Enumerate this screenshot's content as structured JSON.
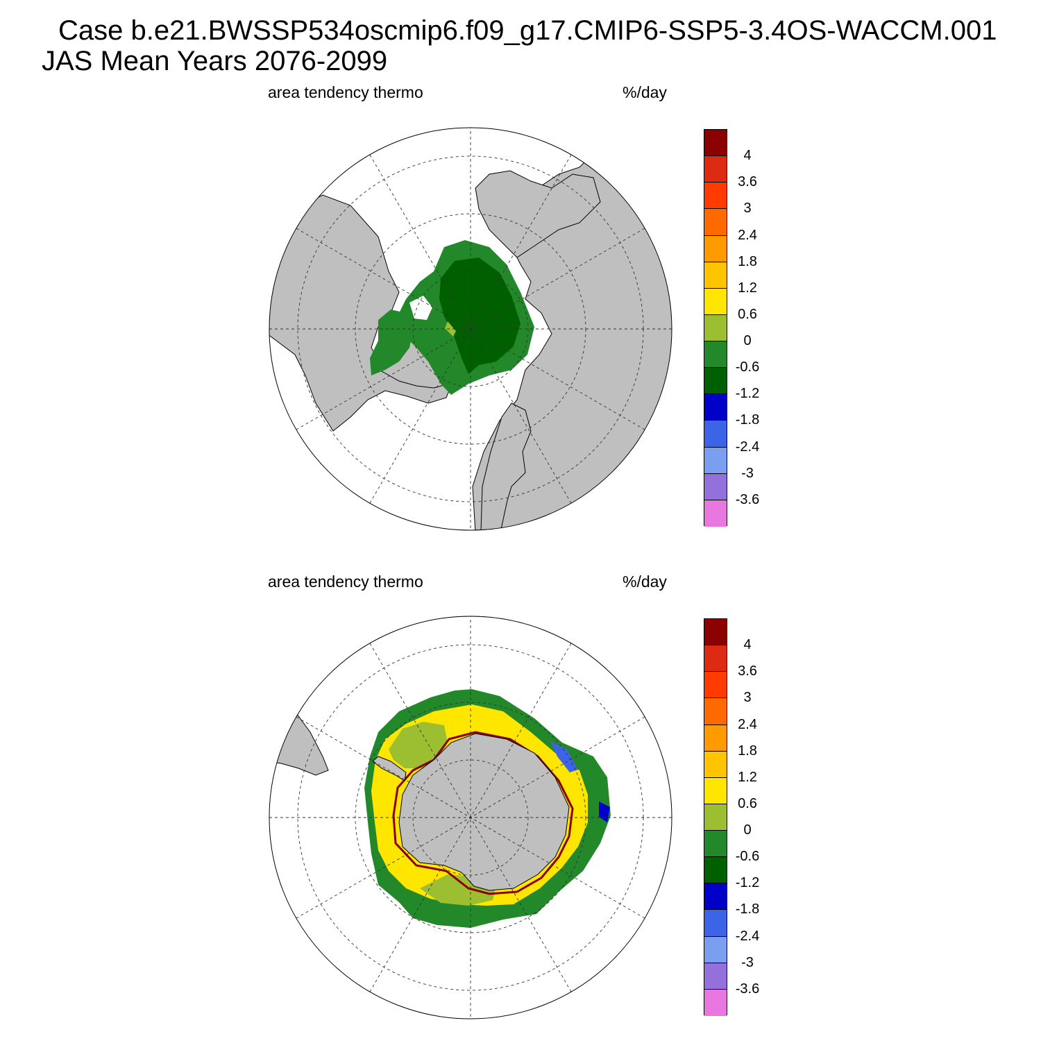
{
  "header": {
    "case_line": "Case b.e21.BWSSP534oscmip6.f09_g17.CMIP6-SSP5-3.4OS-WACCM.001",
    "period_line": "JAS Mean   Years 2076-2099"
  },
  "panels": [
    {
      "hemisphere": "north",
      "variable_label": "area tendency thermo",
      "units_label": "%/day"
    },
    {
      "hemisphere": "south",
      "variable_label": "area tendency thermo",
      "units_label": "%/day"
    }
  ],
  "colorbar": {
    "levels": [
      "4",
      "3.6",
      "3",
      "2.4",
      "1.8",
      "1.2",
      "0.6",
      "0",
      "-0.6",
      "-1.2",
      "-1.8",
      "-2.4",
      "-3",
      "-3.6"
    ],
    "colors": [
      "#8b0000",
      "#dd2a12",
      "#ff3b00",
      "#ff6a00",
      "#ff9a00",
      "#ffc400",
      "#ffe600",
      "#9bbf30",
      "#22882a",
      "#006000",
      "#0000c8",
      "#3c64e6",
      "#7b9ff0",
      "#9370db",
      "#e878e0"
    ]
  },
  "map_colors": {
    "land": "#bfbfbf",
    "ocean": "#ffffff"
  }
}
